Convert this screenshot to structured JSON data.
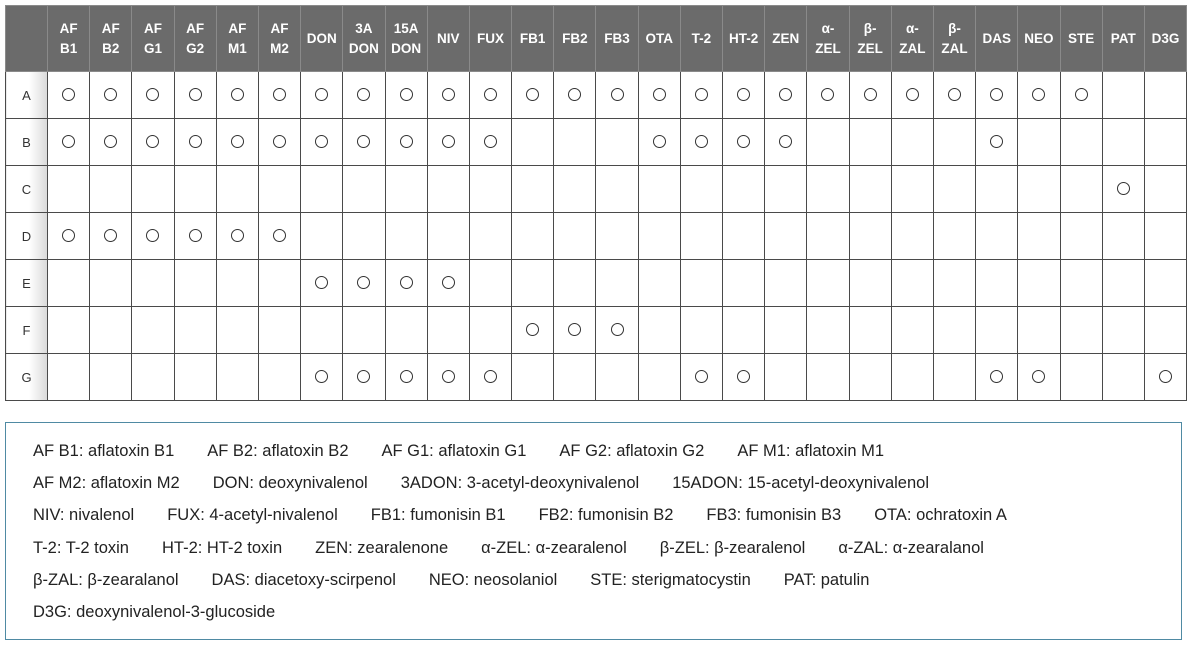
{
  "table": {
    "columns": [
      {
        "l1": "AF",
        "l2": "B1"
      },
      {
        "l1": "AF",
        "l2": "B2"
      },
      {
        "l1": "AF",
        "l2": "G1"
      },
      {
        "l1": "AF",
        "l2": "G2"
      },
      {
        "l1": "AF",
        "l2": "M1"
      },
      {
        "l1": "AF",
        "l2": "M2"
      },
      {
        "l1": "DON",
        "l2": ""
      },
      {
        "l1": "3A",
        "l2": "DON"
      },
      {
        "l1": "15A",
        "l2": "DON"
      },
      {
        "l1": "NIV",
        "l2": ""
      },
      {
        "l1": "FUX",
        "l2": ""
      },
      {
        "l1": "FB1",
        "l2": ""
      },
      {
        "l1": "FB2",
        "l2": ""
      },
      {
        "l1": "FB3",
        "l2": ""
      },
      {
        "l1": "OTA",
        "l2": ""
      },
      {
        "l1": "T-2",
        "l2": ""
      },
      {
        "l1": "HT-2",
        "l2": ""
      },
      {
        "l1": "ZEN",
        "l2": ""
      },
      {
        "l1": "α-",
        "l2": "ZEL"
      },
      {
        "l1": "β-",
        "l2": "ZEL"
      },
      {
        "l1": "α-",
        "l2": "ZAL"
      },
      {
        "l1": "β-",
        "l2": "ZAL"
      },
      {
        "l1": "DAS",
        "l2": ""
      },
      {
        "l1": "NEO",
        "l2": ""
      },
      {
        "l1": "STE",
        "l2": ""
      },
      {
        "l1": "PAT",
        "l2": ""
      },
      {
        "l1": "D3G",
        "l2": ""
      }
    ],
    "rows": [
      {
        "label": "A",
        "marks": [
          1,
          1,
          1,
          1,
          1,
          1,
          1,
          1,
          1,
          1,
          1,
          1,
          1,
          1,
          1,
          1,
          1,
          1,
          1,
          1,
          1,
          1,
          1,
          1,
          1,
          0,
          0
        ]
      },
      {
        "label": "B",
        "marks": [
          1,
          1,
          1,
          1,
          1,
          1,
          1,
          1,
          1,
          1,
          1,
          0,
          0,
          0,
          1,
          1,
          1,
          1,
          0,
          0,
          0,
          0,
          1,
          0,
          0,
          0,
          0
        ]
      },
      {
        "label": "C",
        "marks": [
          0,
          0,
          0,
          0,
          0,
          0,
          0,
          0,
          0,
          0,
          0,
          0,
          0,
          0,
          0,
          0,
          0,
          0,
          0,
          0,
          0,
          0,
          0,
          0,
          0,
          1,
          0
        ]
      },
      {
        "label": "D",
        "marks": [
          1,
          1,
          1,
          1,
          1,
          1,
          0,
          0,
          0,
          0,
          0,
          0,
          0,
          0,
          0,
          0,
          0,
          0,
          0,
          0,
          0,
          0,
          0,
          0,
          0,
          0,
          0
        ]
      },
      {
        "label": "E",
        "marks": [
          0,
          0,
          0,
          0,
          0,
          0,
          1,
          1,
          1,
          1,
          0,
          0,
          0,
          0,
          0,
          0,
          0,
          0,
          0,
          0,
          0,
          0,
          0,
          0,
          0,
          0,
          0
        ]
      },
      {
        "label": "F",
        "marks": [
          0,
          0,
          0,
          0,
          0,
          0,
          0,
          0,
          0,
          0,
          0,
          1,
          1,
          1,
          0,
          0,
          0,
          0,
          0,
          0,
          0,
          0,
          0,
          0,
          0,
          0,
          0
        ]
      },
      {
        "label": "G",
        "marks": [
          0,
          0,
          0,
          0,
          0,
          0,
          1,
          1,
          1,
          1,
          1,
          0,
          0,
          0,
          0,
          1,
          1,
          0,
          0,
          0,
          0,
          0,
          1,
          1,
          0,
          0,
          1
        ]
      }
    ]
  },
  "legend": {
    "lines": [
      [
        "AF B1: aflatoxin B1",
        "AF B2: aflatoxin B2",
        "AF G1: aflatoxin G1",
        "AF G2: aflatoxin G2",
        "AF M1: aflatoxin M1"
      ],
      [
        "AF M2: aflatoxin M2",
        "DON: deoxynivalenol",
        "3ADON: 3-acetyl-deoxynivalenol",
        "15ADON: 15-acetyl-deoxynivalenol"
      ],
      [
        "NIV: nivalenol",
        "FUX: 4-acetyl-nivalenol",
        "FB1: fumonisin B1",
        "FB2: fumonisin B2",
        "FB3: fumonisin B3",
        "OTA: ochratoxin A"
      ],
      [
        "T-2: T-2 toxin",
        "HT-2: HT-2 toxin",
        "ZEN: zearalenone",
        "α-ZEL: α-zearalenol",
        "β-ZEL: β-zearalenol",
        "α-ZAL: α-zearalanol"
      ],
      [
        "β-ZAL: β-zearalanol",
        "DAS: diacetoxy-scirpenol",
        "NEO: neosolaniol",
        "STE: sterigmatocystin",
        "PAT: patulin"
      ],
      [
        "D3G: deoxynivalenol-3-glucoside"
      ]
    ]
  }
}
